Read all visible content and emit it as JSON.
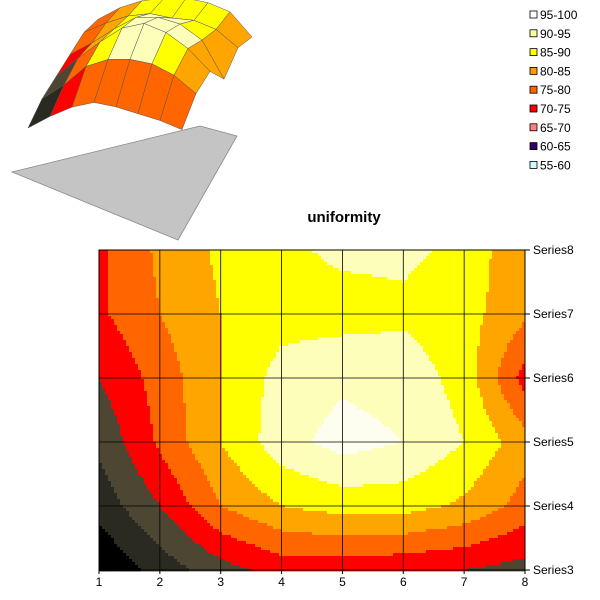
{
  "chart_data": {
    "type": "heatmap",
    "subtype": "contour",
    "title": "uniformity",
    "xlabel": "",
    "ylabel": "",
    "x": [
      1,
      2,
      3,
      4,
      5,
      6,
      7,
      8
    ],
    "categories": [
      "Series3",
      "Series4",
      "Series5",
      "Series6",
      "Series7",
      "Series8"
    ],
    "series": [
      {
        "name": "Series3",
        "values": [
          55,
          62,
          68,
          72,
          72,
          71,
          70,
          68
        ]
      },
      {
        "name": "Series4",
        "values": [
          62,
          70,
          80,
          85,
          87,
          87,
          84,
          78
        ]
      },
      {
        "name": "Series5",
        "values": [
          66,
          76,
          85,
          93,
          97,
          95,
          90,
          82
        ]
      },
      {
        "name": "Series6",
        "values": [
          70,
          77,
          85,
          92,
          94,
          93,
          88,
          73
        ]
      },
      {
        "name": "Series7",
        "values": [
          74,
          80,
          85,
          88,
          88,
          89,
          87,
          81
        ]
      },
      {
        "name": "Series8",
        "values": [
          74,
          81,
          86,
          89,
          91,
          91,
          89,
          80
        ]
      }
    ],
    "levels": [
      {
        "label": "95-100",
        "min": 95,
        "max": 100,
        "color": "#fefef0"
      },
      {
        "label": "90-95",
        "min": 90,
        "max": 95,
        "color": "#fefebb"
      },
      {
        "label": "85-90",
        "min": 85,
        "max": 90,
        "color": "#ffff00"
      },
      {
        "label": "80-85",
        "min": 80,
        "max": 85,
        "color": "#ffa500"
      },
      {
        "label": "75-80",
        "min": 75,
        "max": 80,
        "color": "#ff6600"
      },
      {
        "label": "70-75",
        "min": 70,
        "max": 75,
        "color": "#ff0000"
      },
      {
        "label": "65-70",
        "min": 65,
        "max": 70,
        "color": "#4d4633"
      },
      {
        "label": "60-65",
        "min": 60,
        "max": 65,
        "color": "#2b2a20"
      },
      {
        "label": "55-60",
        "min": 55,
        "max": 60,
        "color": "#000000"
      }
    ],
    "legend_swatch_colors": {
      "95-100": "#ffffff",
      "90-95": "#ffff99",
      "85-90": "#ffff00",
      "80-85": "#ff9900",
      "75-80": "#ff6600",
      "70-75": "#ff0000",
      "65-70": "#ff8080",
      "60-65": "#330066",
      "55-60": "#ccffff"
    },
    "grid": true,
    "legend_position": "top-right",
    "zlim": [
      55,
      100
    ]
  }
}
